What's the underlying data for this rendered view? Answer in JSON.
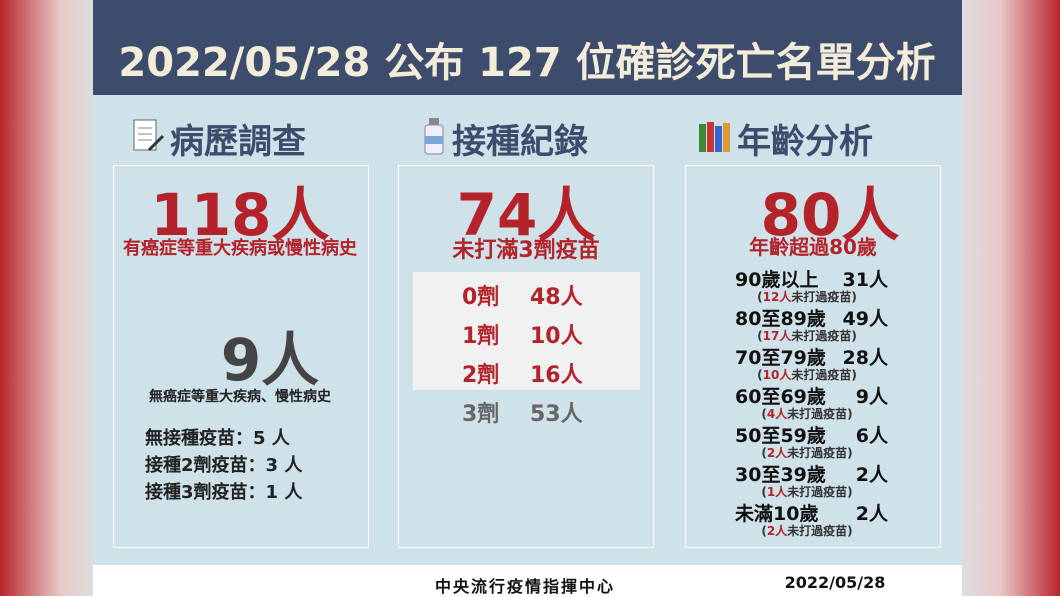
{
  "header": {
    "title": "2022/05/28 公布 127 位確診死亡名單分析"
  },
  "medical_history": {
    "heading": "病歷調查",
    "main": {
      "count": "118人",
      "label": "有癌症等重大疾病或慢性病史"
    },
    "secondary": {
      "count": "9人",
      "label": "無癌症等重大疾病、慢性病史"
    },
    "breakdown": [
      "無接種疫苗：5 人",
      "接種2劑疫苗：3 人",
      "接種3劑疫苗：1 人"
    ]
  },
  "vaccination": {
    "heading": "接種紀錄",
    "main": {
      "count": "74人",
      "label": "未打滿3劑疫苗"
    },
    "doses": [
      {
        "dose": "0劑",
        "count": "48人"
      },
      {
        "dose": "1劑",
        "count": "10人"
      },
      {
        "dose": "2劑",
        "count": "16人"
      },
      {
        "dose": "3劑",
        "count": "53人"
      }
    ]
  },
  "age": {
    "heading": "年齡分析",
    "main": {
      "count": "80人",
      "label": "年齡超過80歲"
    },
    "groups": [
      {
        "range": "90歲以上",
        "count": "31人",
        "note": [
          "(",
          "12人",
          "未打過疫苗)"
        ]
      },
      {
        "range": "80至89歲",
        "count": "49人",
        "note": [
          "(",
          "17人",
          "未打過疫苗)"
        ]
      },
      {
        "range": "70至79歲",
        "count": "28人",
        "note": [
          "(",
          "10人",
          "未打過疫苗)"
        ]
      },
      {
        "range": "60至69歲",
        "count": "9人",
        "note": [
          "(",
          "4人",
          "未打過疫苗)"
        ]
      },
      {
        "range": "50至59歲",
        "count": "6人",
        "note": [
          "(",
          "2人",
          "未打過疫苗)"
        ]
      },
      {
        "range": "30至39歲",
        "count": "2人",
        "note": [
          "(",
          "1人",
          "未打過疫苗)"
        ]
      },
      {
        "range": "未滿10歲",
        "count": "2人",
        "note": [
          "(",
          "2人",
          "未打過疫苗)"
        ]
      }
    ]
  },
  "footer": {
    "source": "中央流行疫情指揮中心",
    "date": "2022/05/28"
  }
}
